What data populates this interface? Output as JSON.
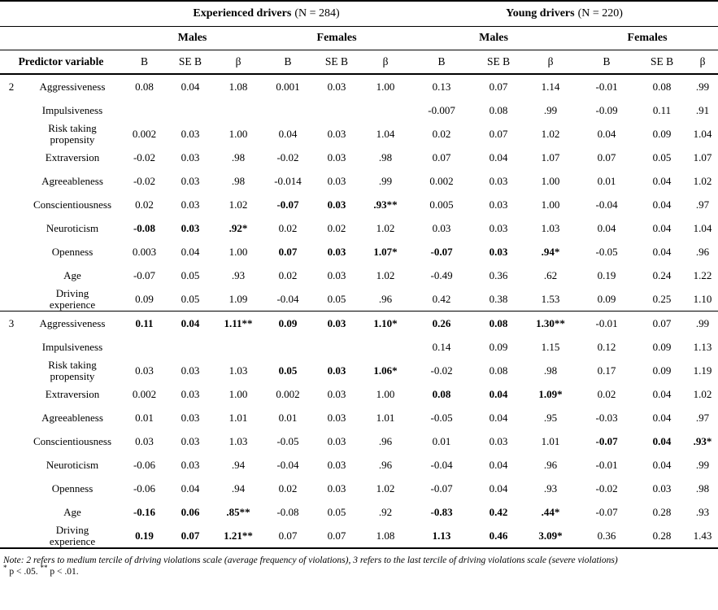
{
  "table": {
    "groups": [
      {
        "label": "Experienced drivers",
        "n": "(N = 284)"
      },
      {
        "label": "Young drivers",
        "n": "(N = 220)"
      }
    ],
    "subgroups": [
      "Males",
      "Females",
      "Males",
      "Females"
    ],
    "col_headers": {
      "predictor": "Predictor variable",
      "stats": [
        "B",
        "SE B",
        "β"
      ]
    },
    "sections": [
      {
        "tercile": "2",
        "rows": [
          {
            "label": "Aggressiveness",
            "cells": [
              "0.08",
              "0.04",
              "1.08",
              "0.001",
              "0.03",
              "1.00",
              "0.13",
              "0.07",
              "1.14",
              "-0.01",
              "0.08",
              ".99"
            ],
            "bold": []
          },
          {
            "label": "Impulsiveness",
            "cells": [
              "",
              "",
              "",
              "",
              "",
              "",
              "-0.007",
              "0.08",
              ".99",
              "-0.09",
              "0.11",
              ".91"
            ],
            "bold": []
          },
          {
            "label": "Risk taking\npropensity",
            "cells": [
              "0.002",
              "0.03",
              "1.00",
              "0.04",
              "0.03",
              "1.04",
              "0.02",
              "0.07",
              "1.02",
              "0.04",
              "0.09",
              "1.04"
            ],
            "bold": []
          },
          {
            "label": "Extraversion",
            "cells": [
              "-0.02",
              "0.03",
              ".98",
              "-0.02",
              "0.03",
              ".98",
              "0.07",
              "0.04",
              "1.07",
              "0.07",
              "0.05",
              "1.07"
            ],
            "bold": []
          },
          {
            "label": "Agreeableness",
            "cells": [
              "-0.02",
              "0.03",
              ".98",
              "-0.014",
              "0.03",
              ".99",
              "0.002",
              "0.03",
              "1.00",
              "0.01",
              "0.04",
              "1.02"
            ],
            "bold": []
          },
          {
            "label": "Conscientiousness",
            "cells": [
              "0.02",
              "0.03",
              "1.02",
              "-0.07",
              "0.03",
              ".93**",
              "0.005",
              "0.03",
              "1.00",
              "-0.04",
              "0.04",
              ".97"
            ],
            "bold": [
              3,
              4,
              5
            ]
          },
          {
            "label": "Neuroticism",
            "cells": [
              "-0.08",
              "0.03",
              ".92*",
              "0.02",
              "0.02",
              "1.02",
              "0.03",
              "0.03",
              "1.03",
              "0.04",
              "0.04",
              "1.04"
            ],
            "bold": [
              0,
              1,
              2
            ]
          },
          {
            "label": "Openness",
            "cells": [
              "0.003",
              "0.04",
              "1.00",
              "0.07",
              "0.03",
              "1.07*",
              "-0.07",
              "0.03",
              ".94*",
              "-0.05",
              "0.04",
              ".96"
            ],
            "bold": [
              3,
              4,
              5,
              6,
              7,
              8
            ]
          },
          {
            "label": "Age",
            "cells": [
              "-0.07",
              "0.05",
              ".93",
              "0.02",
              "0.03",
              "1.02",
              "-0.49",
              "0.36",
              ".62",
              "0.19",
              "0.24",
              "1.22"
            ],
            "bold": []
          },
          {
            "label": "Driving\nexperience",
            "cells": [
              "0.09",
              "0.05",
              "1.09",
              "-0.04",
              "0.05",
              ".96",
              "0.42",
              "0.38",
              "1.53",
              "0.09",
              "0.25",
              "1.10"
            ],
            "bold": []
          }
        ]
      },
      {
        "tercile": "3",
        "rows": [
          {
            "label": "Aggressiveness",
            "cells": [
              "0.11",
              "0.04",
              "1.11**",
              "0.09",
              "0.03",
              "1.10*",
              "0.26",
              "0.08",
              "1.30**",
              "-0.01",
              "0.07",
              ".99"
            ],
            "bold": [
              0,
              1,
              2,
              3,
              4,
              5,
              6,
              7,
              8
            ]
          },
          {
            "label": "Impulsiveness",
            "cells": [
              "",
              "",
              "",
              "",
              "",
              "",
              "0.14",
              "0.09",
              "1.15",
              "0.12",
              "0.09",
              "1.13"
            ],
            "bold": []
          },
          {
            "label": "Risk taking\npropensity",
            "cells": [
              "0.03",
              "0.03",
              "1.03",
              "0.05",
              "0.03",
              "1.06*",
              "-0.02",
              "0.08",
              ".98",
              "0.17",
              "0.09",
              "1.19"
            ],
            "bold": [
              3,
              4,
              5
            ]
          },
          {
            "label": "Extraversion",
            "cells": [
              "0.002",
              "0.03",
              "1.00",
              "0.002",
              "0.03",
              "1.00",
              "0.08",
              "0.04",
              "1.09*",
              "0.02",
              "0.04",
              "1.02"
            ],
            "bold": [
              6,
              7,
              8
            ]
          },
          {
            "label": "Agreeableness",
            "cells": [
              "0.01",
              "0.03",
              "1.01",
              "0.01",
              "0.03",
              "1.01",
              "-0.05",
              "0.04",
              ".95",
              "-0.03",
              "0.04",
              ".97"
            ],
            "bold": []
          },
          {
            "label": "Conscientiousness",
            "cells": [
              "0.03",
              "0.03",
              "1.03",
              "-0.05",
              "0.03",
              ".96",
              "0.01",
              "0.03",
              "1.01",
              "-0.07",
              "0.04",
              ".93*"
            ],
            "bold": [
              9,
              10,
              11
            ]
          },
          {
            "label": "Neuroticism",
            "cells": [
              "-0.06",
              "0.03",
              ".94",
              "-0.04",
              "0.03",
              ".96",
              "-0.04",
              "0.04",
              ".96",
              "-0.01",
              "0.04",
              ".99"
            ],
            "bold": []
          },
          {
            "label": "Openness",
            "cells": [
              "-0.06",
              "0.04",
              ".94",
              "0.02",
              "0.03",
              "1.02",
              "-0.07",
              "0.04",
              ".93",
              "-0.02",
              "0.03",
              ".98"
            ],
            "bold": []
          },
          {
            "label": "Age",
            "cells": [
              "-0.16",
              "0.06",
              ".85**",
              "-0.08",
              "0.05",
              ".92",
              "-0.83",
              "0.42",
              ".44*",
              "-0.07",
              "0.28",
              ".93"
            ],
            "bold": [
              0,
              1,
              2,
              6,
              7,
              8
            ]
          },
          {
            "label": "Driving\nexperience",
            "cells": [
              "0.19",
              "0.07",
              "1.21**",
              "0.07",
              "0.07",
              "1.08",
              "1.13",
              "0.46",
              "3.09*",
              "0.36",
              "0.28",
              "1.43"
            ],
            "bold": [
              0,
              1,
              2,
              6,
              7,
              8
            ]
          }
        ]
      }
    ],
    "note": "Note: 2 refers to medium tercile of driving violations scale (average frequency of violations), 3 refers to the last tercile of driving violations scale (severe violations)",
    "significance": [
      {
        "stars": "*",
        "text": "p < .05."
      },
      {
        "stars": "**",
        "text": "p < .01."
      }
    ]
  }
}
